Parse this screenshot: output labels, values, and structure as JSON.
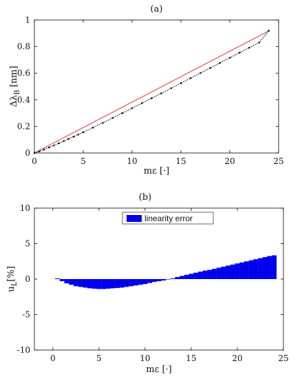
{
  "chart_data": [
    {
      "type": "line",
      "title": "(a)",
      "xlabel": "mε [·]",
      "ylabel": "Δλ",
      "ylabel_sub": "B",
      "ylabel_unit": "[nm]",
      "xlim": [
        0,
        25
      ],
      "ylim": [
        0,
        1
      ],
      "xticks": [
        "0",
        "5",
        "10",
        "15",
        "20",
        "25"
      ],
      "xtick_values": [
        0,
        5,
        10,
        15,
        20,
        25
      ],
      "yticks": [
        "0",
        "0.2",
        "0.4",
        "0.6",
        "0.8",
        "1"
      ],
      "ytick_values": [
        0,
        0.2,
        0.4,
        0.6,
        0.8,
        1
      ],
      "grid": false,
      "series": [
        {
          "style": "dotted-markers",
          "color": "#111111",
          "x": [
            0,
            0.5,
            1,
            1.5,
            2,
            2.5,
            3,
            3.5,
            4,
            4.5,
            5,
            6,
            7,
            8,
            9,
            10,
            11,
            12,
            13,
            14,
            15,
            16,
            17,
            18,
            19,
            20,
            21,
            22,
            23,
            24
          ],
          "y": [
            0,
            0.012,
            0.026,
            0.042,
            0.057,
            0.073,
            0.089,
            0.106,
            0.122,
            0.139,
            0.156,
            0.191,
            0.227,
            0.263,
            0.3,
            0.337,
            0.374,
            0.412,
            0.449,
            0.487,
            0.525,
            0.563,
            0.601,
            0.639,
            0.677,
            0.716,
            0.754,
            0.792,
            0.83,
            0.92
          ]
        },
        {
          "style": "line",
          "color": "#e05555",
          "x": [
            0,
            24
          ],
          "y": [
            0,
            0.918
          ]
        }
      ]
    },
    {
      "type": "bar",
      "title": "(b)",
      "xlabel": "mε [·]",
      "ylabel": "u",
      "ylabel_sub": "L",
      "ylabel_unit": "[%]",
      "xlim": [
        -2,
        25
      ],
      "ylim": [
        -10,
        10
      ],
      "xticks": [
        "0",
        "5",
        "10",
        "15",
        "20",
        "25"
      ],
      "xtick_values": [
        0,
        5,
        10,
        15,
        20,
        25
      ],
      "yticks": [
        "-10",
        "-5",
        "0",
        "5",
        "10"
      ],
      "ytick_values": [
        -10,
        -5,
        0,
        5,
        10
      ],
      "grid": false,
      "legend_position": "top-center",
      "series": [
        {
          "name": "linearity error",
          "color": "#0000ee",
          "x": [
            0.5,
            1,
            1.5,
            2,
            2.5,
            3,
            3.5,
            4,
            4.5,
            5,
            5.5,
            6,
            6.5,
            7,
            7.5,
            8,
            8.5,
            9,
            9.5,
            10,
            10.5,
            11,
            11.5,
            12,
            12.5,
            13,
            13.5,
            14,
            14.5,
            15,
            15.5,
            16,
            16.5,
            17,
            17.5,
            18,
            18.5,
            19,
            19.5,
            20,
            20.5,
            21,
            21.5,
            22,
            22.5,
            23,
            23.5,
            24
          ],
          "values": [
            0.1,
            -0.3,
            -0.6,
            -0.8,
            -1.0,
            -1.1,
            -1.2,
            -1.3,
            -1.35,
            -1.4,
            -1.4,
            -1.35,
            -1.3,
            -1.25,
            -1.2,
            -1.1,
            -1.0,
            -0.9,
            -0.8,
            -0.7,
            -0.55,
            -0.4,
            -0.3,
            -0.2,
            -0.05,
            0.1,
            0.3,
            0.45,
            0.6,
            0.75,
            0.9,
            1.05,
            1.2,
            1.3,
            1.45,
            1.6,
            1.75,
            1.9,
            2.05,
            2.2,
            2.35,
            2.5,
            2.65,
            2.8,
            2.95,
            3.1,
            3.25,
            3.35
          ]
        }
      ]
    }
  ]
}
